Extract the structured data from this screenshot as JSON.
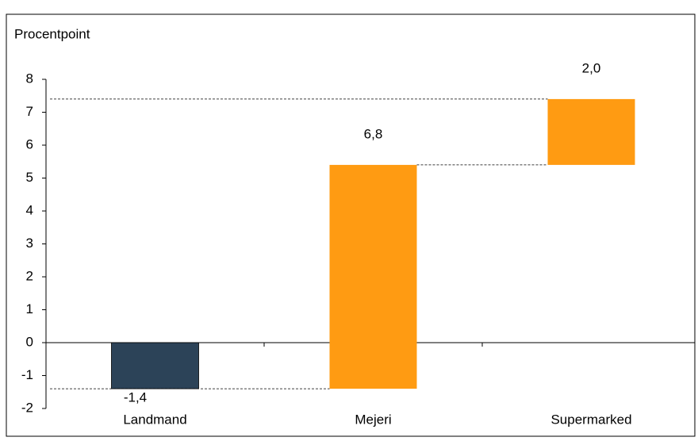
{
  "chart_data": {
    "type": "waterfall",
    "y_label": "Procentpoint",
    "categories": [
      "Landmand",
      "Mejeri",
      "Supermarked"
    ],
    "values": [
      -1.4,
      6.8,
      2.0
    ],
    "value_labels": [
      "-1,4",
      "6,8",
      "2,0"
    ],
    "colors": [
      "#2c4358",
      "#ff9b12",
      "#ff9b12"
    ],
    "ylim": [
      -2,
      8
    ],
    "yticks": [
      -2,
      -1,
      0,
      1,
      2,
      3,
      4,
      5,
      6,
      7,
      8
    ]
  }
}
